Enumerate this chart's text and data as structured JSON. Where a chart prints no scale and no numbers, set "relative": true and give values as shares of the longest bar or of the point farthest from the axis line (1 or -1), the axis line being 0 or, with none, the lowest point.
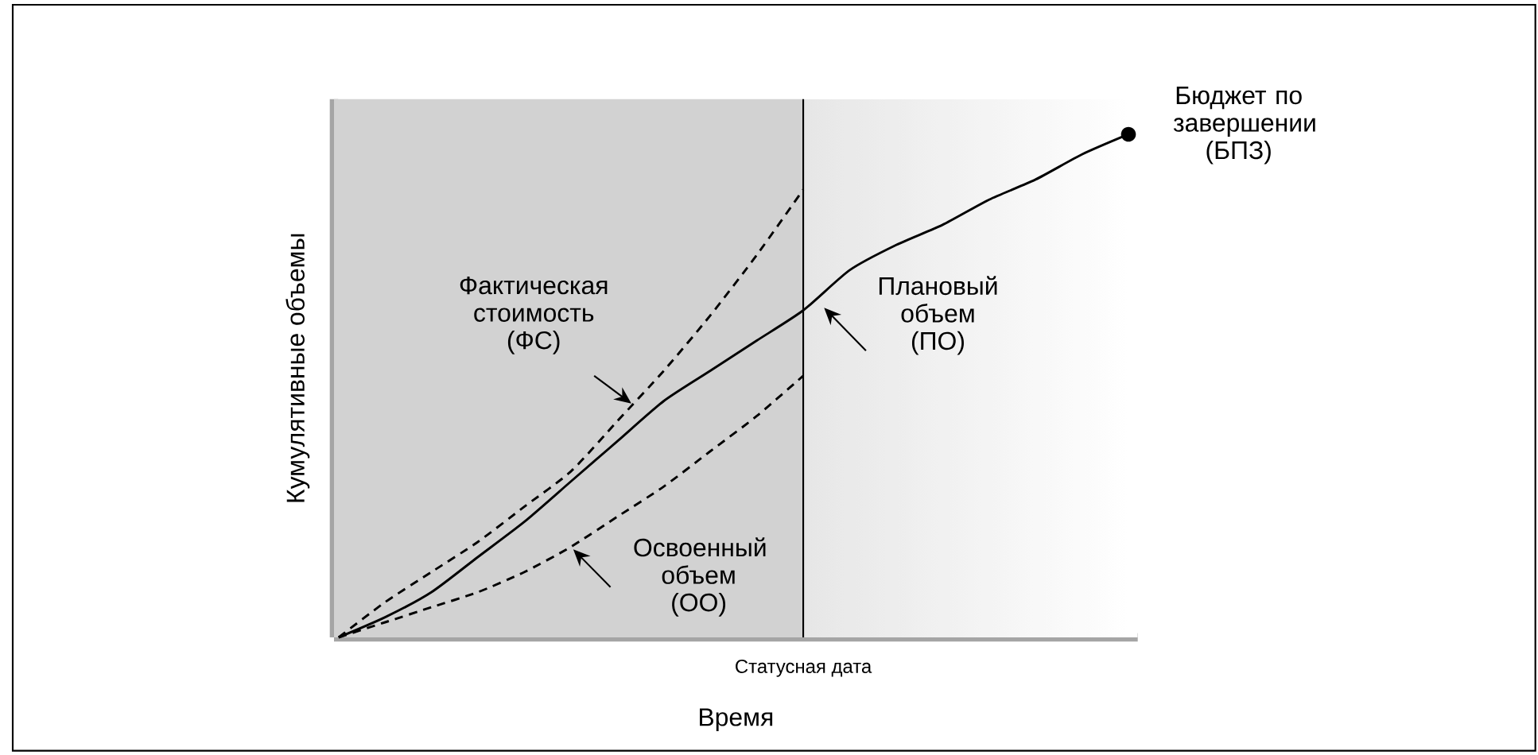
{
  "chart_data": {
    "type": "line",
    "relative": true,
    "xlabel": "Время",
    "ylabel": "Кумулятивные объемы",
    "categories": [
      null,
      null,
      null,
      null,
      null,
      null,
      null,
      null,
      null,
      null,
      null,
      null,
      null,
      null,
      null,
      null,
      null,
      null
    ],
    "series": [
      {
        "color": "#000000",
        "line_style": "dashed",
        "values": [
          0,
          0.07,
          0.13,
          0.19,
          0.26,
          0.33,
          0.43,
          0.53,
          0.64,
          0.76,
          0.89,
          null,
          null,
          null,
          null,
          null,
          null,
          null
        ]
      },
      {
        "color": "#000000",
        "line_style": "solid",
        "values": [
          0,
          0.04,
          0.09,
          0.16,
          0.23,
          0.31,
          0.39,
          0.47,
          0.53,
          0.59,
          0.65,
          0.73,
          0.78,
          0.82,
          0.87,
          0.91,
          0.96,
          1
        ]
      },
      {
        "color": "#000000",
        "line_style": "dashed",
        "values": [
          0,
          0.03,
          0.06,
          0.09,
          0.13,
          0.18,
          0.24,
          0.3,
          0.37,
          0.44,
          0.52,
          null,
          null,
          null,
          null,
          null,
          null,
          null
        ]
      }
    ],
    "annotations": [
      "Статусная дата",
      "Бюджет по завершении (БПЗ)",
      "Фактическая стоимость (ФС)",
      "Плановый объем (ПО)",
      "Освоенный объем (ОО)"
    ]
  }
}
